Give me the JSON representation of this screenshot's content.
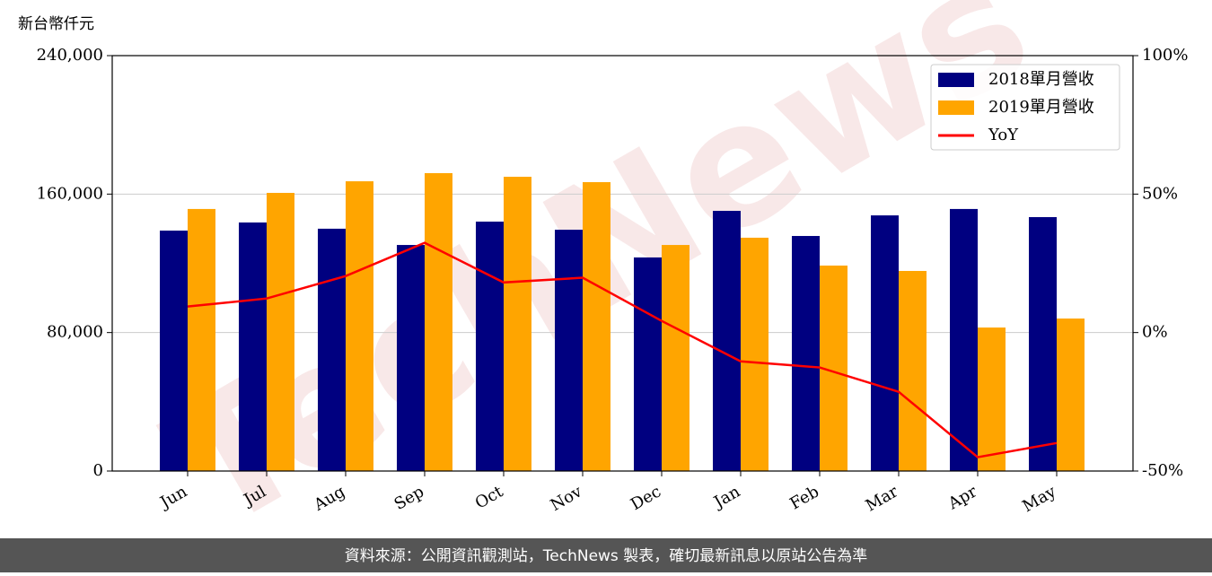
{
  "chart_data": {
    "type": "bar_line",
    "y_unit_label": "新台幣仟元",
    "watermark": "TechNews",
    "footer": "資料來源：公開資訊觀測站，TechNews 製表，確切最新訊息以原站公告為準",
    "categories": [
      "Jun",
      "Jul",
      "Aug",
      "Sep",
      "Oct",
      "Nov",
      "Dec",
      "Jan",
      "Feb",
      "Mar",
      "Apr",
      "May"
    ],
    "series": [
      {
        "name": "2018單月營收",
        "color": "#000080",
        "kind": "bar",
        "values": [
          138900,
          143600,
          140000,
          130600,
          144100,
          139400,
          123400,
          150300,
          135800,
          147700,
          151400,
          146700
        ]
      },
      {
        "name": "2019單月營收",
        "color": "#ffa500",
        "kind": "bar",
        "values": [
          151400,
          160700,
          167400,
          172100,
          170000,
          166900,
          130600,
          134800,
          118700,
          115600,
          82900,
          88100
        ]
      },
      {
        "name": "YoY",
        "color": "#ff0000",
        "kind": "line",
        "axis": "y2",
        "values": [
          9.4,
          12.3,
          20.4,
          32.4,
          18.1,
          19.8,
          4.2,
          -10.4,
          -12.6,
          -21.4,
          -45.0,
          -39.9
        ]
      }
    ],
    "ylim": [
      0,
      240000
    ],
    "yticks": [
      {
        "value": 0,
        "label": "0"
      },
      {
        "value": 80000,
        "label": "80,000"
      },
      {
        "value": 160000,
        "label": "160,000"
      },
      {
        "value": 240000,
        "label": "240,000"
      }
    ],
    "y2lim": [
      -50,
      100
    ],
    "y2ticks": [
      {
        "value": -50,
        "label": "-50%"
      },
      {
        "value": 0,
        "label": "0%"
      },
      {
        "value": 50,
        "label": "50%"
      },
      {
        "value": 100,
        "label": "100%"
      }
    ],
    "grid": true,
    "legend": "upper right"
  }
}
